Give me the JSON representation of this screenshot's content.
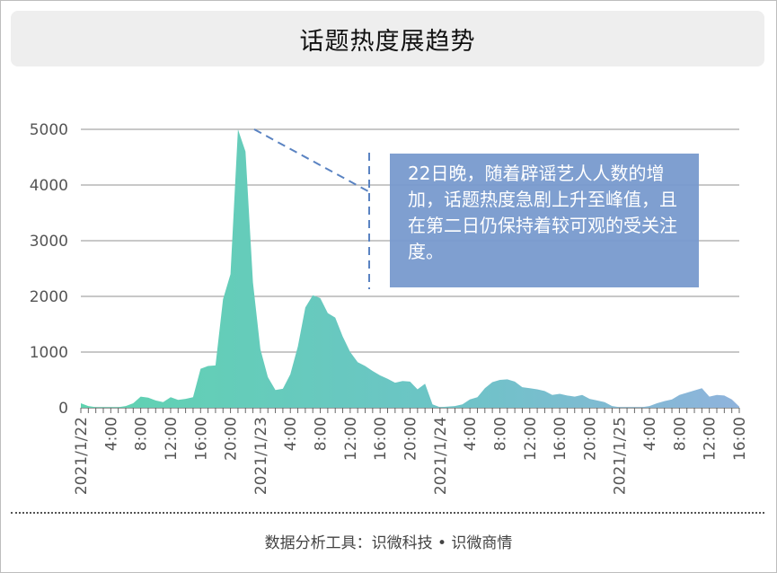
{
  "title": "话题热度展趋势",
  "annotation": "22日晚，随着辟谣艺人人数的增加，话题热度急剧上升至峰值，且在第二日仍保持着较可观的受关注度。",
  "footer": "数据分析工具：识微科技 • 识微商情",
  "colors": {
    "area_top": "#5fd3b0",
    "area_right": "#8fb3dc",
    "grid": "#9b9b9b",
    "annotation_bg": "#789ace",
    "dash_line": "#5a83c2"
  },
  "chart_data": {
    "type": "area",
    "ylim": [
      0,
      5000
    ],
    "yticks": [
      "0",
      "1000",
      "2000",
      "3000",
      "4000",
      "5000"
    ],
    "xtick_labels": [
      "2021/1/22",
      "4:00",
      "8:00",
      "12:00",
      "16:00",
      "20:00",
      "2021/1/23",
      "4:00",
      "8:00",
      "12:00",
      "16:00",
      "20:00",
      "2021/1/24",
      "4:00",
      "8:00",
      "12:00",
      "16:00",
      "20:00",
      "2021/1/25",
      "4:00",
      "8:00",
      "12:00",
      "16:00"
    ],
    "x_hours_start": 0,
    "x_hours_end": 88,
    "grid": true,
    "series": [
      {
        "x": [
          0,
          1,
          2,
          3,
          4,
          5,
          6,
          7,
          8,
          9,
          10,
          11,
          12,
          13,
          14,
          15,
          16,
          17,
          18,
          19,
          20,
          21,
          22,
          23,
          24,
          25,
          26,
          27,
          28,
          29,
          30,
          31,
          32,
          33,
          34,
          35,
          36,
          37,
          38,
          39,
          40,
          41,
          42,
          43,
          44,
          45,
          46,
          47,
          48,
          49,
          50,
          51,
          52,
          53,
          54,
          55,
          56,
          57,
          58,
          59,
          60,
          61,
          62,
          63,
          64,
          65,
          66,
          67,
          68,
          69,
          70,
          71,
          72,
          73,
          74,
          75,
          76,
          77,
          78,
          79,
          80,
          81,
          82,
          83,
          84,
          85,
          86,
          87,
          88
        ],
        "values": [
          80,
          30,
          10,
          10,
          10,
          10,
          30,
          80,
          200,
          180,
          130,
          100,
          190,
          140,
          160,
          190,
          700,
          750,
          760,
          1950,
          2400,
          5000,
          4600,
          2250,
          1050,
          550,
          320,
          340,
          600,
          1100,
          1800,
          2020,
          1970,
          1700,
          1620,
          1280,
          1000,
          820,
          750,
          660,
          580,
          520,
          450,
          480,
          470,
          330,
          430,
          60,
          10,
          20,
          30,
          60,
          150,
          190,
          350,
          460,
          500,
          510,
          470,
          370,
          350,
          330,
          300,
          230,
          250,
          220,
          200,
          230,
          160,
          130,
          100,
          30,
          10,
          10,
          10,
          10,
          30,
          80,
          120,
          150,
          230,
          270,
          310,
          350,
          200,
          230,
          220,
          150,
          20
        ]
      }
    ]
  }
}
